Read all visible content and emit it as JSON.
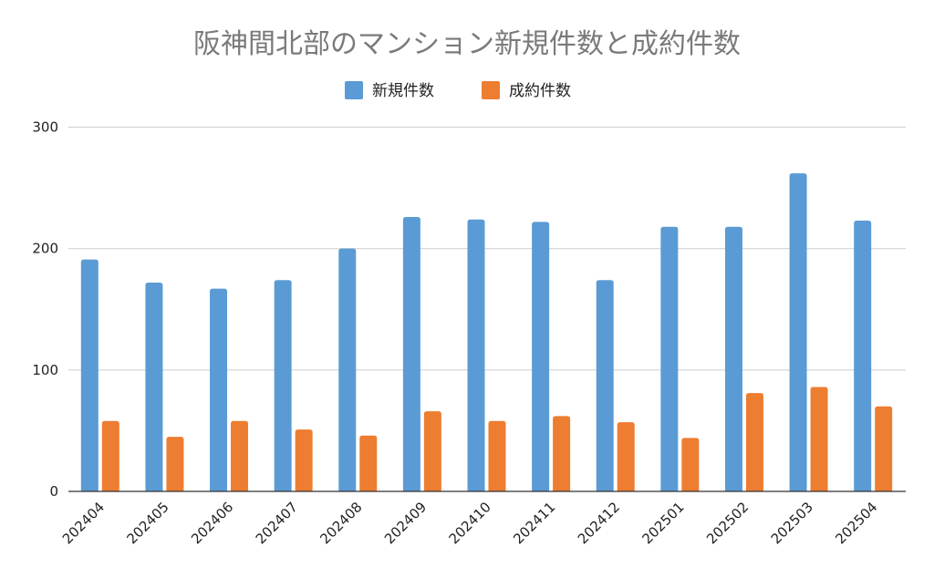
{
  "chart_data": {
    "type": "bar",
    "title": "阪神間北部のマンション新規件数と成約件数",
    "xlabel": "",
    "ylabel": "",
    "categories": [
      "202404",
      "202405",
      "202406",
      "202407",
      "202408",
      "202409",
      "202410",
      "202411",
      "202412",
      "202501",
      "202502",
      "202503",
      "202504"
    ],
    "series": [
      {
        "name": "新規件数",
        "color": "#5b9bd5",
        "values": [
          191,
          172,
          167,
          174,
          200,
          226,
          224,
          222,
          174,
          218,
          218,
          262,
          223
        ]
      },
      {
        "name": "成約件数",
        "color": "#ed7d31",
        "values": [
          58,
          45,
          58,
          51,
          46,
          66,
          58,
          62,
          57,
          44,
          81,
          86,
          70
        ]
      }
    ],
    "ylim": [
      0,
      300
    ],
    "yticks": [
      "0",
      "100",
      "200",
      "300"
    ],
    "grid": true,
    "legend_position": "top"
  }
}
